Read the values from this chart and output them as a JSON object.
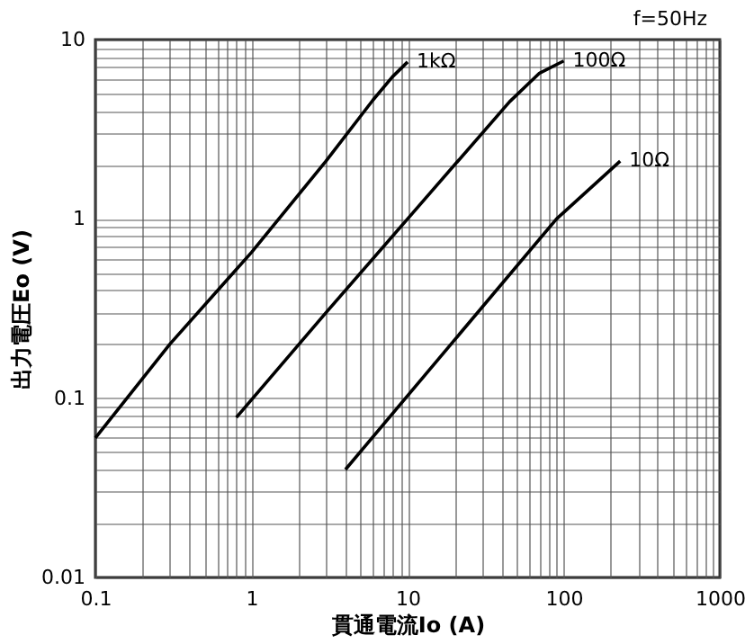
{
  "chart_data": {
    "type": "line",
    "xlabel": "貫通電流Io (A)",
    "ylabel": "出力電圧Eo (V)",
    "annotations": [
      "f=50Hz"
    ],
    "log": "xy",
    "grid": true,
    "legend": false,
    "line_style": "solid",
    "marker": "none",
    "xlim": [
      0.1,
      1000
    ],
    "ylim": [
      0.01,
      10
    ],
    "xticks": [
      {
        "value": 0.1,
        "label": "0.1"
      },
      {
        "value": 0.2,
        "label": null
      },
      {
        "value": 0.3,
        "label": null
      },
      {
        "value": 0.4,
        "label": null
      },
      {
        "value": 0.5,
        "label": null
      },
      {
        "value": 0.6,
        "label": null
      },
      {
        "value": 0.7,
        "label": null
      },
      {
        "value": 0.8,
        "label": null
      },
      {
        "value": 0.9,
        "label": null
      },
      1,
      {
        "value": 2,
        "label": null
      },
      {
        "value": 3,
        "label": null
      },
      {
        "value": 4,
        "label": null
      },
      {
        "value": 5,
        "label": null
      },
      {
        "value": 6,
        "label": null
      },
      {
        "value": 7,
        "label": null
      },
      {
        "value": 8,
        "label": null
      },
      {
        "value": 9,
        "label": null
      },
      10,
      {
        "value": 20,
        "label": null
      },
      {
        "value": 30,
        "label": null
      },
      {
        "value": 40,
        "label": null
      },
      {
        "value": 50,
        "label": null
      },
      {
        "value": 60,
        "label": null
      },
      {
        "value": 70,
        "label": null
      },
      {
        "value": 80,
        "label": null
      },
      {
        "value": 90,
        "label": null
      },
      100,
      {
        "value": 200,
        "label": null
      },
      {
        "value": 300,
        "label": null
      },
      {
        "value": 400,
        "label": null
      },
      {
        "value": 500,
        "label": null
      },
      {
        "value": 600,
        "label": null
      },
      {
        "value": 700,
        "label": null
      },
      {
        "value": 800,
        "label": null
      },
      {
        "value": 900,
        "label": null
      },
      1000
    ],
    "yticks": [
      {
        "value": 0.01,
        "label": "0.01"
      },
      {
        "value": 0.02,
        "label": null
      },
      {
        "value": 0.03,
        "label": null
      },
      {
        "value": 0.04,
        "label": null
      },
      {
        "value": 0.05,
        "label": null
      },
      {
        "value": 0.06,
        "label": null
      },
      {
        "value": 0.07,
        "label": null
      },
      {
        "value": 0.08,
        "label": null
      },
      {
        "value": 0.09,
        "label": null
      },
      {
        "value": 0.1,
        "label": "0.1"
      },
      {
        "value": 0.2,
        "label": null
      },
      {
        "value": 0.3,
        "label": null
      },
      {
        "value": 0.4,
        "label": null
      },
      {
        "value": 0.5,
        "label": null
      },
      {
        "value": 0.6,
        "label": null
      },
      {
        "value": 0.7,
        "label": null
      },
      {
        "value": 0.8,
        "label": null
      },
      {
        "value": 0.9,
        "label": null
      },
      1,
      {
        "value": 2,
        "label": null
      },
      {
        "value": 3,
        "label": null
      },
      {
        "value": 4,
        "label": null
      },
      {
        "value": 5,
        "label": null
      },
      {
        "value": 6,
        "label": null
      },
      {
        "value": 7,
        "label": null
      },
      {
        "value": 8,
        "label": null
      },
      {
        "value": 9,
        "label": null
      },
      10
    ],
    "series": [
      {
        "name": "1kΩ",
        "color": "#000000",
        "x": [
          0.1,
          0.3,
          1,
          3,
          6,
          8,
          10
        ],
        "values": [
          0.06,
          0.2,
          0.65,
          2.1,
          4.6,
          6.2,
          7.5
        ]
      },
      {
        "name": "100Ω",
        "color": "#000000",
        "x": [
          0.8,
          3,
          10,
          45,
          70,
          100
        ],
        "values": [
          0.078,
          0.3,
          1.0,
          4.5,
          6.5,
          7.6
        ]
      },
      {
        "name": "10Ω",
        "color": "#000000",
        "x": [
          4,
          90,
          230
        ],
        "values": [
          0.04,
          1.0,
          2.1
        ]
      }
    ]
  }
}
